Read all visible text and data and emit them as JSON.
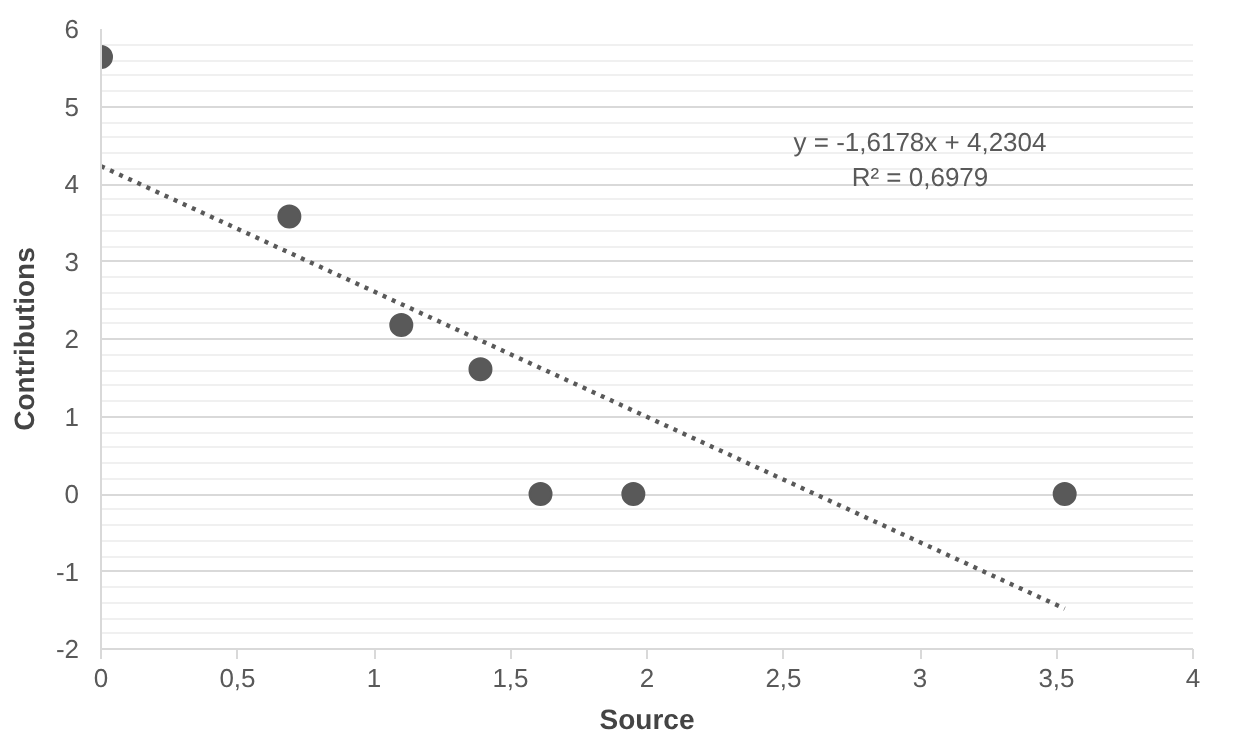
{
  "chart_data": {
    "type": "scatter",
    "xlabel": "Source",
    "ylabel": "Contributions",
    "xlim": [
      0,
      4
    ],
    "ylim": [
      -2,
      6
    ],
    "xticks": [
      0,
      {
        "value": 0.5,
        "label": "0,5"
      },
      1,
      {
        "value": 1.5,
        "label": "1,5"
      },
      2,
      {
        "value": 2.5,
        "label": "2,5"
      },
      3,
      {
        "value": 3.5,
        "label": "3,5"
      },
      4
    ],
    "yticks": [
      -2,
      -1,
      0,
      1,
      2,
      3,
      4,
      5,
      6
    ],
    "grid": "y",
    "series": [
      {
        "marker": "circle",
        "color": "#595959",
        "x": [
          0,
          0.69,
          1.1,
          1.39,
          1.61,
          1.95,
          3.53
        ],
        "values": [
          5.64,
          3.58,
          2.18,
          1.61,
          0,
          0,
          0
        ]
      },
      {
        "type": "line",
        "line_style": "dotted",
        "color": "#595959",
        "x": [
          0,
          3.53
        ],
        "values": [
          4.23,
          -1.48
        ]
      }
    ],
    "annotations": [
      "y = -1,6178x + 4,2304",
      "R² = 0,6979"
    ]
  }
}
